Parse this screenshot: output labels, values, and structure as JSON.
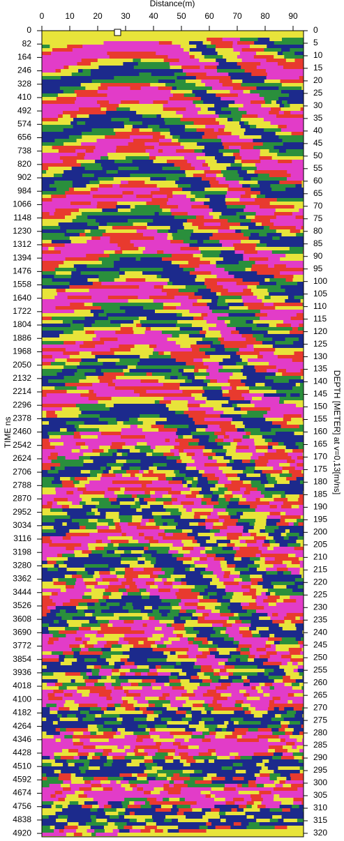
{
  "chart_data": {
    "type": "radargram",
    "xlabel": "Distance(m)",
    "ylabel": "TIME ns",
    "y2label": "DEPTH [METER] at v=0,13[m/ns]",
    "xlim": [
      0,
      93.75
    ],
    "xticks": [
      0,
      10,
      20,
      30,
      40,
      50,
      60,
      70,
      80,
      90
    ],
    "ylim": [
      0,
      4941
    ],
    "yticks": [
      0,
      82,
      164,
      246,
      328,
      410,
      492,
      574,
      656,
      738,
      820,
      902,
      984,
      1066,
      1148,
      1230,
      1312,
      1394,
      1476,
      1558,
      1640,
      1722,
      1804,
      1886,
      1968,
      2050,
      2132,
      2214,
      2296,
      2378,
      2460,
      2542,
      2624,
      2706,
      2788,
      2870,
      2952,
      3034,
      3116,
      3198,
      3280,
      3362,
      3444,
      3526,
      3608,
      3690,
      3772,
      3854,
      3936,
      4018,
      4100,
      4182,
      4264,
      4346,
      4428,
      4510,
      4592,
      4674,
      4756,
      4838,
      4920
    ],
    "y2lim": [
      0,
      321.4
    ],
    "y2ticks": [
      0,
      5,
      10,
      15,
      20,
      25,
      30,
      35,
      40,
      45,
      50,
      55,
      60,
      65,
      70,
      75,
      80,
      85,
      90,
      95,
      100,
      105,
      110,
      115,
      120,
      125,
      130,
      135,
      140,
      145,
      150,
      155,
      160,
      165,
      170,
      175,
      180,
      185,
      190,
      195,
      200,
      205,
      210,
      215,
      220,
      225,
      230,
      235,
      240,
      245,
      250,
      255,
      260,
      265,
      270,
      275,
      280,
      285,
      290,
      295,
      300,
      305,
      310,
      315,
      320
    ],
    "colors": [
      "#1c2a8c",
      "#2a8f3c",
      "#e8e43a",
      "#e83a2e",
      "#e23cc8"
    ]
  }
}
